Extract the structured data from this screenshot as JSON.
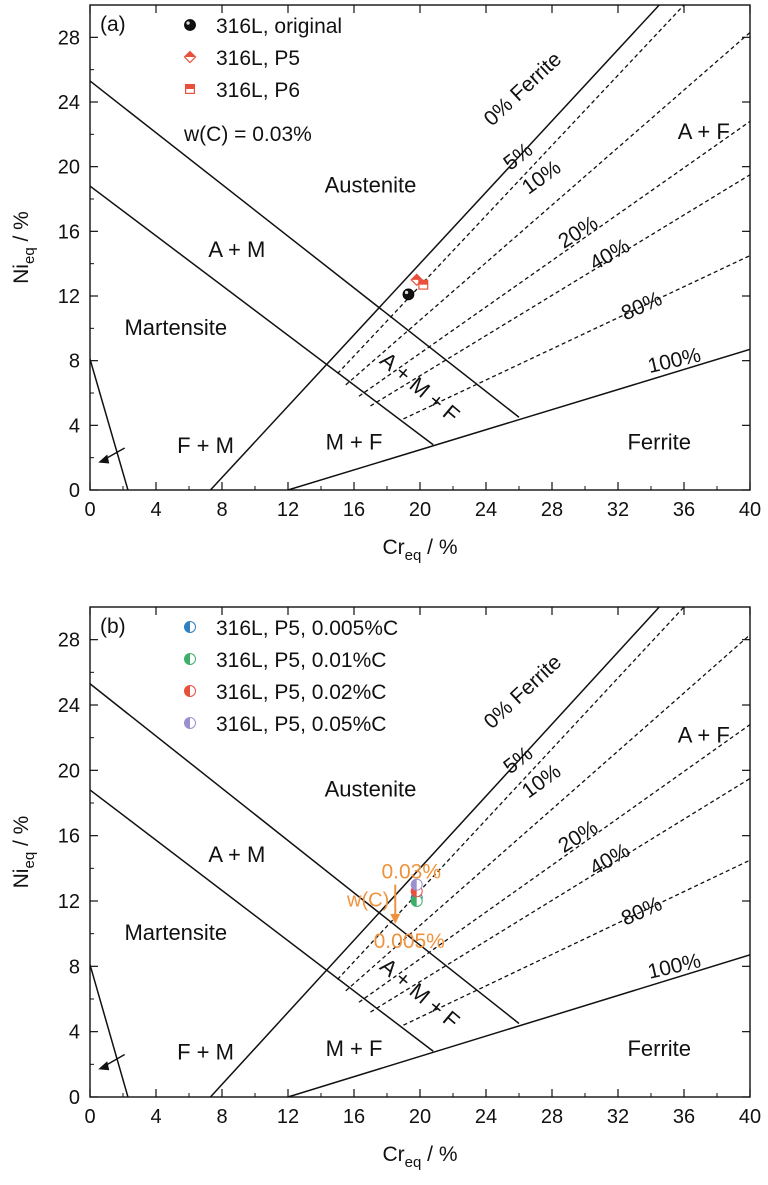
{
  "chart_data": [
    {
      "type": "line",
      "panel_label": "(a)",
      "xlabel": {
        "main": "Cr",
        "sub": "eq",
        "unit": " / %"
      },
      "ylabel": {
        "main": "Ni",
        "sub": "eq",
        "unit": " / %"
      },
      "xlim": [
        0,
        40
      ],
      "ylim": [
        0,
        30
      ],
      "xticks": [
        "0",
        "4",
        "8",
        "12",
        "16",
        "20",
        "24",
        "28",
        "32",
        "36",
        "40"
      ],
      "yticks": [
        "0",
        "4",
        "8",
        "12",
        "16",
        "20",
        "24",
        "28"
      ],
      "boundaries": [
        {
          "x": [
            0,
            26
          ],
          "y": [
            25.3,
            4.5
          ]
        },
        {
          "x": [
            0,
            20.8
          ],
          "y": [
            18.8,
            2.8
          ]
        },
        {
          "x": [
            7.3,
            34.5
          ],
          "y": [
            0,
            30
          ]
        },
        {
          "x": [
            12,
            40
          ],
          "y": [
            0,
            8.7
          ]
        },
        {
          "x": [
            0,
            2.3
          ],
          "y": [
            8.1,
            0
          ]
        }
      ],
      "iso_ferrite_lines": [
        {
          "x": [
            15,
            36
          ],
          "y": [
            7.2,
            30
          ]
        },
        {
          "x": [
            15.5,
            40
          ],
          "y": [
            6.5,
            28.3
          ]
        },
        {
          "x": [
            16.3,
            40
          ],
          "y": [
            5.8,
            22.8
          ]
        },
        {
          "x": [
            17,
            40
          ],
          "y": [
            5.2,
            19.5
          ]
        },
        {
          "x": [
            19,
            40
          ],
          "y": [
            4.4,
            14.5
          ]
        }
      ],
      "regions": [
        "Austenite",
        "A + M",
        "Martensite",
        "A + M + F",
        "M + F",
        "Ferrite",
        "A + F",
        "F + M"
      ],
      "line_labels": [
        "0% Ferrite",
        "5%",
        "10%",
        "20%",
        "40%",
        "80%",
        "100%"
      ],
      "annotation": "w(C) = 0.03%",
      "series": [
        {
          "name": "316L, original",
          "x": [
            19.3
          ],
          "y": [
            12.1
          ],
          "color": "#111111",
          "marker": "sphere"
        },
        {
          "name": "316L, P5",
          "x": [
            19.8
          ],
          "y": [
            13.0
          ],
          "color": "#e8503c",
          "marker": "diamond-half"
        },
        {
          "name": "316L, P6",
          "x": [
            20.2
          ],
          "y": [
            12.7
          ],
          "color": "#e8503c",
          "marker": "square-half"
        }
      ]
    },
    {
      "type": "line",
      "panel_label": "(b)",
      "xlabel": {
        "main": "Cr",
        "sub": "eq",
        "unit": " / %"
      },
      "ylabel": {
        "main": "Ni",
        "sub": "eq",
        "unit": " / %"
      },
      "xlim": [
        0,
        40
      ],
      "ylim": [
        0,
        30
      ],
      "xticks": [
        "0",
        "4",
        "8",
        "12",
        "16",
        "20",
        "24",
        "28",
        "32",
        "36",
        "40"
      ],
      "yticks": [
        "0",
        "4",
        "8",
        "12",
        "16",
        "20",
        "24",
        "28"
      ],
      "boundaries": [
        {
          "x": [
            0,
            26
          ],
          "y": [
            25.3,
            4.5
          ]
        },
        {
          "x": [
            0,
            20.8
          ],
          "y": [
            18.8,
            2.8
          ]
        },
        {
          "x": [
            7.3,
            34.5
          ],
          "y": [
            0,
            30
          ]
        },
        {
          "x": [
            12,
            40
          ],
          "y": [
            0,
            8.7
          ]
        },
        {
          "x": [
            0,
            2.3
          ],
          "y": [
            8.1,
            0
          ]
        }
      ],
      "iso_ferrite_lines": [
        {
          "x": [
            15,
            36
          ],
          "y": [
            7.2,
            30
          ]
        },
        {
          "x": [
            15.5,
            40
          ],
          "y": [
            6.5,
            28.3
          ]
        },
        {
          "x": [
            16.3,
            40
          ],
          "y": [
            5.8,
            22.8
          ]
        },
        {
          "x": [
            17,
            40
          ],
          "y": [
            5.2,
            19.5
          ]
        },
        {
          "x": [
            19,
            40
          ],
          "y": [
            4.4,
            14.5
          ]
        }
      ],
      "regions": [
        "Austenite",
        "A + M",
        "Martensite",
        "A + M + F",
        "M + F",
        "Ferrite",
        "A + F",
        "F + M"
      ],
      "line_labels": [
        "0% Ferrite",
        "5%",
        "10%",
        "20%",
        "40%",
        "80%",
        "100%"
      ],
      "arrow": {
        "top_label": "0.03%",
        "side_label": "w(C)",
        "bottom_label": "0.005%",
        "x": 18.5,
        "y": [
          13.0,
          10.6
        ],
        "color": "#f0923c"
      },
      "series": [
        {
          "name": "316L, P5, 0.005%C",
          "x": [
            19.8
          ],
          "y": [
            12.2
          ],
          "color": "#2f7fc1",
          "marker": "half-circle"
        },
        {
          "name": "316L, P5, 0.01%C",
          "x": [
            19.8
          ],
          "y": [
            12.0
          ],
          "color": "#3fae6a",
          "marker": "half-circle"
        },
        {
          "name": "316L, P5, 0.02%C",
          "x": [
            19.8
          ],
          "y": [
            12.6
          ],
          "color": "#e8503c",
          "marker": "half-circle"
        },
        {
          "name": "316L, P5, 0.05%C",
          "x": [
            19.8
          ],
          "y": [
            13.0
          ],
          "color": "#9b8fd0",
          "marker": "half-circle"
        }
      ]
    }
  ]
}
